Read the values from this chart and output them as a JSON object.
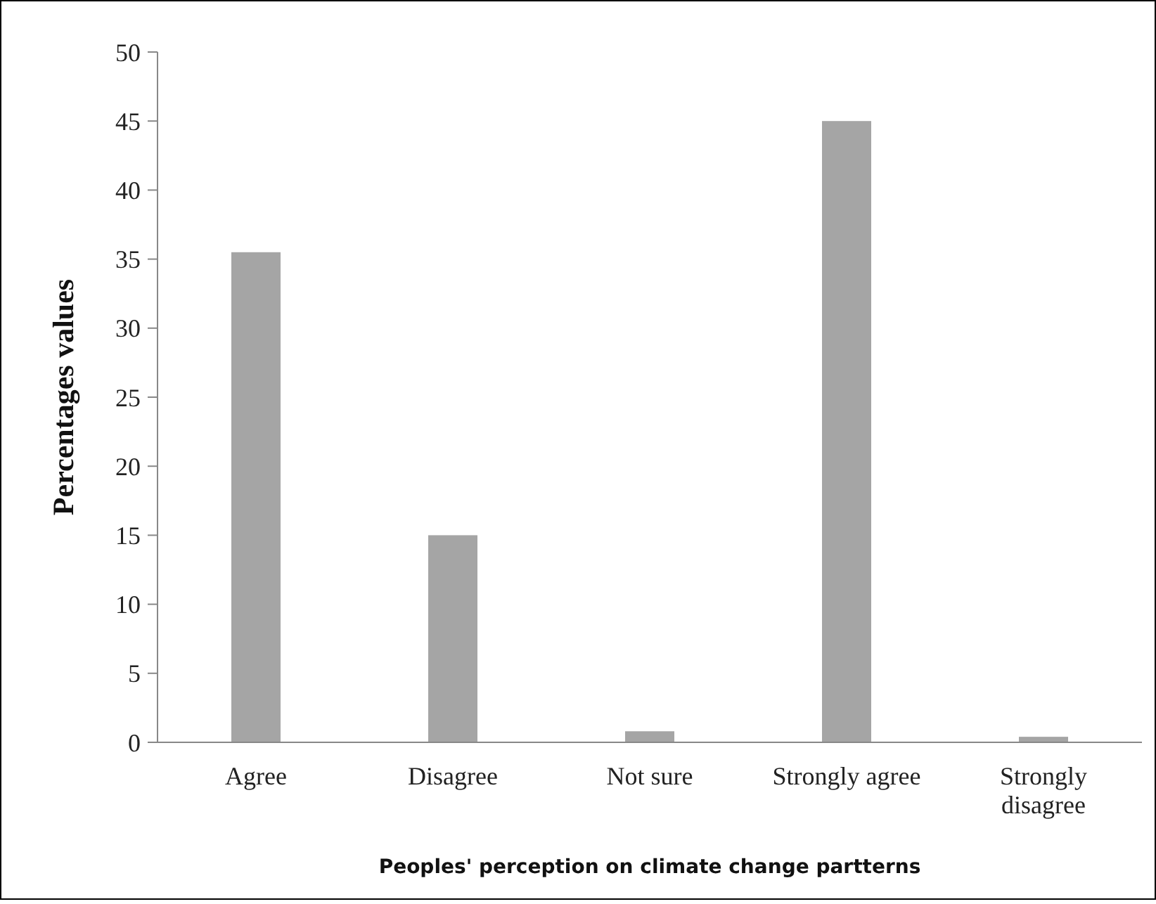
{
  "chart_data": {
    "type": "bar",
    "xlabel": "Peoples' perception on climate change partterns",
    "ylabel": "Percentages values",
    "categories": [
      "Agree",
      "Disagree",
      "Not sure",
      "Strongly agree",
      "Strongly disagree"
    ],
    "values": [
      35.5,
      15,
      0.8,
      45,
      0.4
    ],
    "color": "#a5a5a5",
    "ylim": [
      0,
      50
    ],
    "yticks": [
      0,
      5,
      10,
      15,
      20,
      25,
      30,
      35,
      40,
      45,
      50
    ],
    "grid": false
  }
}
